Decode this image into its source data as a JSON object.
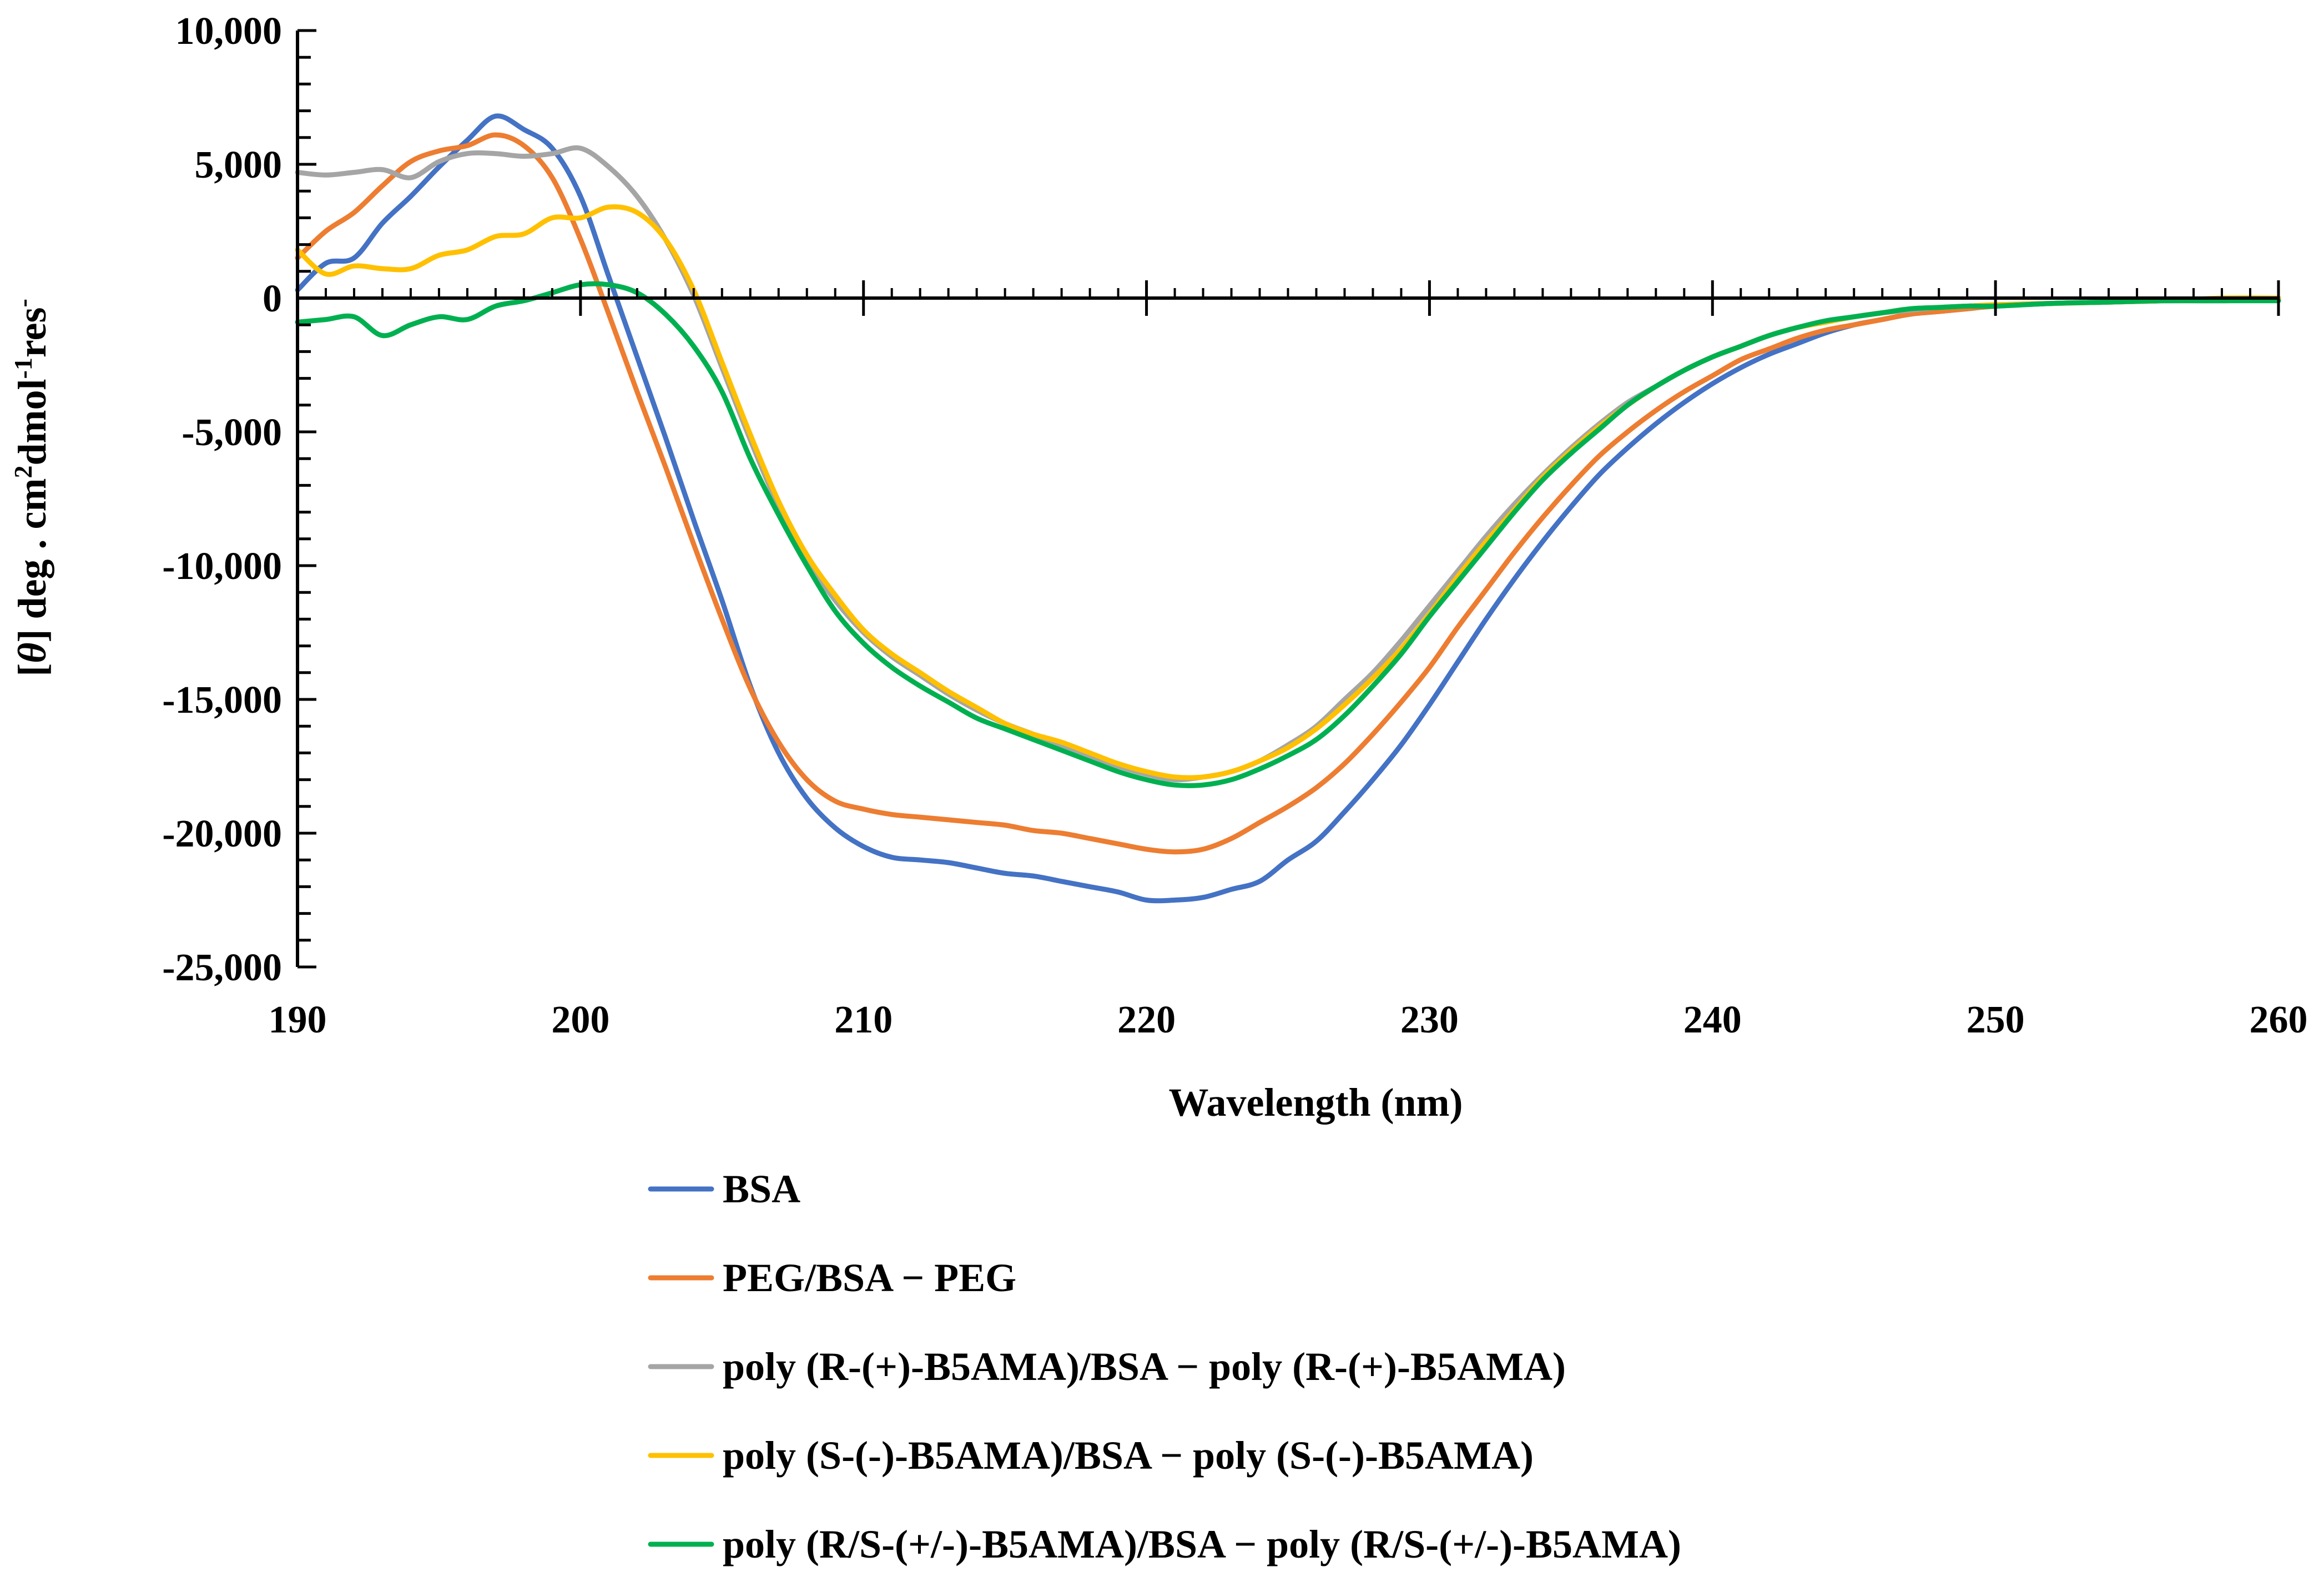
{
  "chart_data": {
    "type": "line",
    "title": "",
    "xlabel": "Wavelength (nm)",
    "ylabel_parts": [
      "[",
      "θ",
      "] deg . cm",
      "2",
      "dmol",
      "-1",
      "res",
      "-"
    ],
    "xlim": [
      190,
      260
    ],
    "ylim": [
      -25000,
      10000
    ],
    "xticks": [
      190,
      200,
      210,
      220,
      230,
      240,
      250,
      260
    ],
    "yticks": [
      10000,
      5000,
      0,
      -5000,
      -10000,
      -15000,
      -20000,
      -25000
    ],
    "ytick_labels": [
      "10,000",
      "5,000",
      "0",
      "-5,000",
      "-10,000",
      "-15,000",
      "-20,000",
      "-25,000"
    ],
    "grid": false,
    "legend_position": "bottom",
    "series": [
      {
        "name": "BSA",
        "color": "#4472C4",
        "x": [
          190,
          191,
          192,
          193,
          194,
          195,
          196,
          197,
          198,
          199,
          200,
          201,
          202,
          203,
          204,
          205,
          206,
          207,
          208,
          209,
          210,
          211,
          212,
          213,
          214,
          215,
          216,
          217,
          218,
          219,
          220,
          221,
          222,
          223,
          224,
          225,
          226,
          227,
          228,
          229,
          230,
          231,
          232,
          233,
          234,
          235,
          236,
          237,
          238,
          239,
          240,
          241,
          242,
          243,
          244,
          245,
          246,
          247,
          248,
          249,
          250,
          252,
          254,
          256,
          258,
          260
        ],
        "y": [
          300,
          1300,
          1500,
          2800,
          3800,
          4900,
          5900,
          6800,
          6300,
          5600,
          3800,
          800,
          -2200,
          -5200,
          -8300,
          -11300,
          -14500,
          -17000,
          -18700,
          -19800,
          -20500,
          -20900,
          -21000,
          -21100,
          -21300,
          -21500,
          -21600,
          -21800,
          -22000,
          -22200,
          -22500,
          -22500,
          -22400,
          -22100,
          -21800,
          -21000,
          -20300,
          -19200,
          -18000,
          -16700,
          -15200,
          -13600,
          -12000,
          -10500,
          -9100,
          -7800,
          -6600,
          -5600,
          -4700,
          -3900,
          -3200,
          -2600,
          -2100,
          -1700,
          -1300,
          -1000,
          -800,
          -600,
          -500,
          -400,
          -300,
          -200,
          -150,
          -100,
          -50,
          0
        ]
      },
      {
        "name": "PEG/BSA − PEG",
        "color": "#ED7D31",
        "x": [
          190,
          191,
          192,
          193,
          194,
          195,
          196,
          197,
          198,
          199,
          200,
          201,
          202,
          203,
          204,
          205,
          206,
          207,
          208,
          209,
          210,
          211,
          212,
          213,
          214,
          215,
          216,
          217,
          218,
          219,
          220,
          221,
          222,
          223,
          224,
          225,
          226,
          227,
          228,
          229,
          230,
          231,
          232,
          233,
          234,
          235,
          236,
          237,
          238,
          239,
          240,
          241,
          242,
          243,
          244,
          245,
          246,
          247,
          248,
          249,
          250,
          252,
          254,
          256,
          258,
          260
        ],
        "y": [
          1500,
          2500,
          3200,
          4200,
          5100,
          5500,
          5700,
          6100,
          5700,
          4500,
          2200,
          -600,
          -3500,
          -6300,
          -9200,
          -12000,
          -14600,
          -16600,
          -18000,
          -18800,
          -19100,
          -19300,
          -19400,
          -19500,
          -19600,
          -19700,
          -19900,
          -20000,
          -20200,
          -20400,
          -20600,
          -20700,
          -20600,
          -20200,
          -19600,
          -19000,
          -18300,
          -17400,
          -16300,
          -15100,
          -13800,
          -12300,
          -10900,
          -9500,
          -8200,
          -7000,
          -5900,
          -5000,
          -4200,
          -3500,
          -2900,
          -2300,
          -1900,
          -1500,
          -1200,
          -1000,
          -800,
          -600,
          -500,
          -400,
          -300,
          -200,
          -150,
          -100,
          -100,
          -50
        ]
      },
      {
        "name": "poly (R-(+)-B5AMA)/BSA − poly (R-(+)-B5AMA)",
        "color": "#A5A5A5",
        "x": [
          190,
          191,
          192,
          193,
          194,
          195,
          196,
          197,
          198,
          199,
          200,
          201,
          202,
          203,
          204,
          205,
          206,
          207,
          208,
          209,
          210,
          211,
          212,
          213,
          214,
          215,
          216,
          217,
          218,
          219,
          220,
          221,
          222,
          223,
          224,
          225,
          226,
          227,
          228,
          229,
          230,
          231,
          232,
          233,
          234,
          235,
          236,
          237,
          238,
          239,
          240,
          241,
          242,
          243,
          244,
          245,
          246,
          247,
          248,
          249,
          250,
          252,
          254,
          256,
          258,
          260
        ],
        "y": [
          4700,
          4600,
          4700,
          4800,
          4500,
          5100,
          5400,
          5400,
          5300,
          5400,
          5600,
          4900,
          3800,
          2200,
          100,
          -2600,
          -5300,
          -7800,
          -9800,
          -11300,
          -12500,
          -13400,
          -14100,
          -14800,
          -15400,
          -15900,
          -16300,
          -16700,
          -17100,
          -17500,
          -17800,
          -18000,
          -17900,
          -17700,
          -17300,
          -16700,
          -16000,
          -15000,
          -14000,
          -12800,
          -11500,
          -10200,
          -8900,
          -7700,
          -6600,
          -5600,
          -4700,
          -3900,
          -3300,
          -2700,
          -2200,
          -1800,
          -1400,
          -1100,
          -900,
          -700,
          -550,
          -450,
          -350,
          -300,
          -250,
          -200,
          -150,
          -100,
          -100,
          -50
        ]
      },
      {
        "name": "poly (S-(-)-B5AMA)/BSA − poly (S-(-)-B5AMA)",
        "color": "#FFC000",
        "x": [
          190,
          191,
          192,
          193,
          194,
          195,
          196,
          197,
          198,
          199,
          200,
          201,
          202,
          203,
          204,
          205,
          206,
          207,
          208,
          209,
          210,
          211,
          212,
          213,
          214,
          215,
          216,
          217,
          218,
          219,
          220,
          221,
          222,
          223,
          224,
          225,
          226,
          227,
          228,
          229,
          230,
          231,
          232,
          233,
          234,
          235,
          236,
          237,
          238,
          239,
          240,
          241,
          242,
          243,
          244,
          245,
          246,
          247,
          248,
          249,
          250,
          252,
          254,
          256,
          258,
          260
        ],
        "y": [
          1800,
          900,
          1200,
          1100,
          1100,
          1600,
          1800,
          2300,
          2400,
          3000,
          3000,
          3400,
          3200,
          2200,
          300,
          -2400,
          -5100,
          -7600,
          -9600,
          -11100,
          -12400,
          -13300,
          -14000,
          -14700,
          -15300,
          -15900,
          -16300,
          -16600,
          -17000,
          -17400,
          -17700,
          -17900,
          -17900,
          -17700,
          -17300,
          -16800,
          -16100,
          -15200,
          -14200,
          -13100,
          -11800,
          -10400,
          -9100,
          -7900,
          -6700,
          -5700,
          -4800,
          -4000,
          -3300,
          -2700,
          -2200,
          -1800,
          -1400,
          -1100,
          -900,
          -700,
          -550,
          -400,
          -350,
          -300,
          -250,
          -200,
          -150,
          -100,
          0,
          0
        ]
      },
      {
        "name": "poly (R/S-(+/-)-B5AMA)/BSA − poly (R/S-(+/-)-B5AMA)",
        "color": "#00B050",
        "x": [
          190,
          191,
          192,
          193,
          194,
          195,
          196,
          197,
          198,
          199,
          200,
          201,
          202,
          203,
          204,
          205,
          206,
          207,
          208,
          209,
          210,
          211,
          212,
          213,
          214,
          215,
          216,
          217,
          218,
          219,
          220,
          221,
          222,
          223,
          224,
          225,
          226,
          227,
          228,
          229,
          230,
          231,
          232,
          233,
          234,
          235,
          236,
          237,
          238,
          239,
          240,
          241,
          242,
          243,
          244,
          245,
          246,
          247,
          248,
          249,
          250,
          252,
          254,
          256,
          258,
          260
        ],
        "y": [
          -900,
          -800,
          -700,
          -1400,
          -1000,
          -700,
          -800,
          -300,
          -100,
          200,
          500,
          500,
          200,
          -600,
          -1800,
          -3500,
          -6000,
          -8100,
          -10000,
          -11700,
          -12900,
          -13800,
          -14500,
          -15100,
          -15700,
          -16100,
          -16500,
          -16900,
          -17300,
          -17700,
          -18000,
          -18200,
          -18200,
          -18000,
          -17600,
          -17100,
          -16500,
          -15600,
          -14500,
          -13300,
          -11900,
          -10600,
          -9300,
          -8000,
          -6800,
          -5800,
          -4900,
          -4000,
          -3300,
          -2700,
          -2200,
          -1800,
          -1400,
          -1100,
          -850,
          -700,
          -550,
          -400,
          -350,
          -300,
          -300,
          -200,
          -150,
          -100,
          -100,
          -100
        ]
      }
    ]
  }
}
